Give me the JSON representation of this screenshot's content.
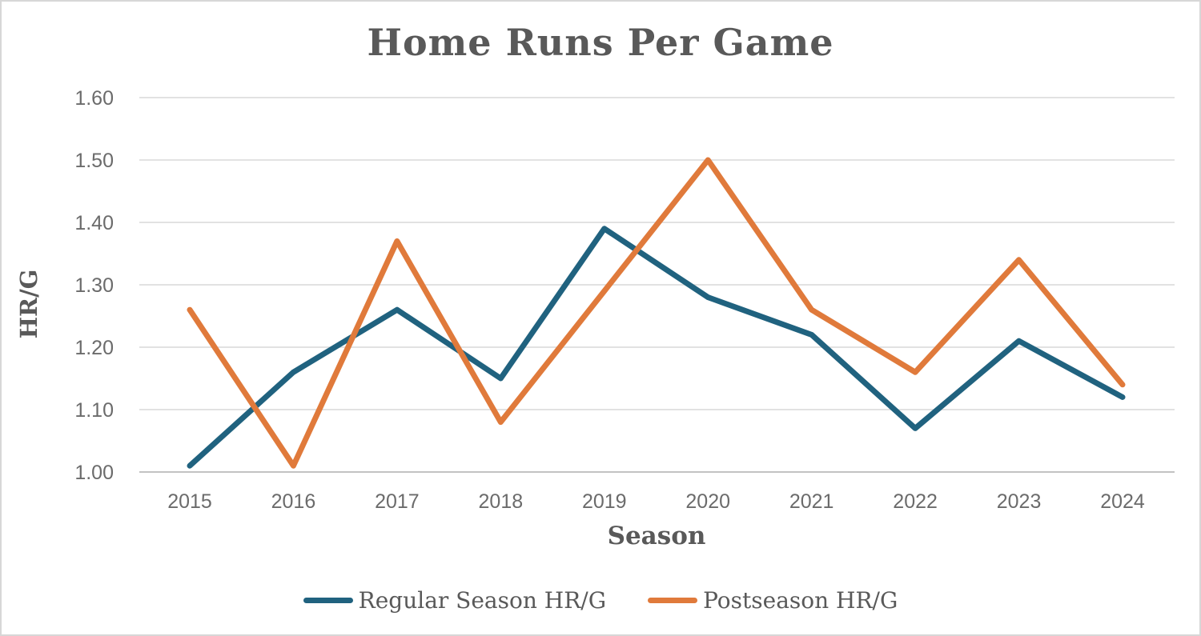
{
  "window": {
    "background": "#ffffff",
    "border_color": "#d7d7d7"
  },
  "chart_data": {
    "type": "line",
    "title": "Home Runs Per Game",
    "xlabel": "Season",
    "ylabel": "HR/G",
    "categories": [
      "2015",
      "2016",
      "2017",
      "2018",
      "2019",
      "2020",
      "2021",
      "2022",
      "2023",
      "2024"
    ],
    "series": [
      {
        "name": "Regular Season HR/G",
        "color": "#20627f",
        "values": [
          1.01,
          1.16,
          1.26,
          1.15,
          1.39,
          1.28,
          1.22,
          1.07,
          1.21,
          1.12
        ]
      },
      {
        "name": "Postseason HR/G",
        "color": "#e07a3b",
        "values": [
          1.26,
          1.01,
          1.37,
          1.08,
          1.29,
          1.5,
          1.26,
          1.16,
          1.34,
          1.14
        ]
      }
    ],
    "ylim": [
      1.0,
      1.6
    ],
    "ytick_step": 0.1,
    "ytick_decimals": 2,
    "grid": true,
    "legend_position": "bottom",
    "text_color": "#595959",
    "tick_text_color": "#6b6b6b",
    "gridline_color": "#d9d9d9",
    "baseline_color": "#c3c3c3"
  }
}
